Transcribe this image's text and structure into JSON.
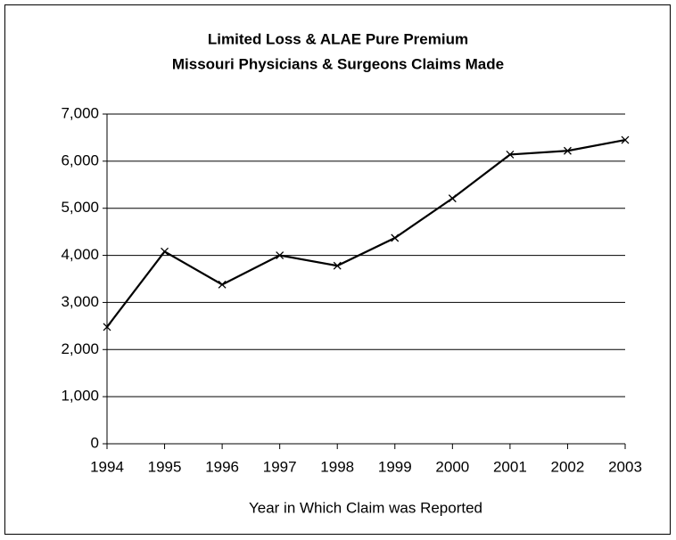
{
  "chart_data": {
    "type": "line",
    "title": "Limited Loss & ALAE Pure Premium",
    "subtitle": "Missouri Physicians & Surgeons Claims Made",
    "x_label": "Year in Which Claim was Reported",
    "x": [
      1994,
      1995,
      1996,
      1997,
      1998,
      1999,
      2000,
      2001,
      2002,
      2003
    ],
    "series": [
      {
        "color": "#000000",
        "values": [
          2480,
          4080,
          3380,
          4000,
          3780,
          4370,
          5210,
          6140,
          6220,
          6450
        ]
      }
    ],
    "xlim": [
      1994,
      2003
    ],
    "xticks": [
      1994,
      1995,
      1996,
      1997,
      1998,
      1999,
      2000,
      2001,
      2002,
      2003
    ],
    "ylim": [
      0,
      7000
    ],
    "yticks": [
      0,
      {
        "value": 1000,
        "label": "1,000"
      },
      {
        "value": 2000,
        "label": "2,000"
      },
      {
        "value": 3000,
        "label": "3,000"
      },
      {
        "value": 4000,
        "label": "4,000"
      },
      {
        "value": 5000,
        "label": "5,000"
      },
      {
        "value": 6000,
        "label": "6,000"
      },
      {
        "value": 7000,
        "label": "7,000"
      }
    ],
    "grid": true,
    "marker": "x"
  }
}
